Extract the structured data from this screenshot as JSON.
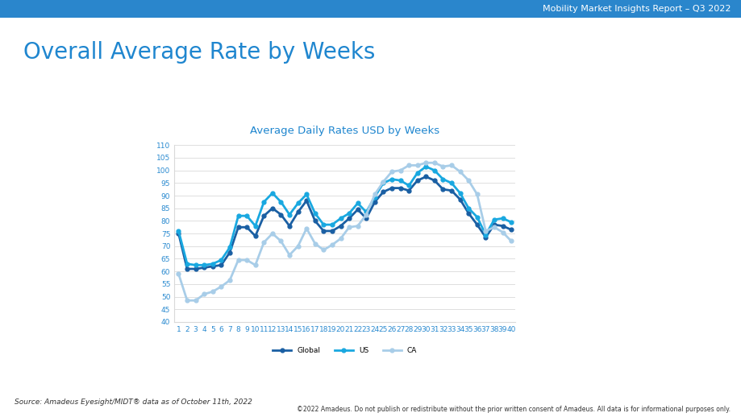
{
  "header": "Mobility Market Insights Report – Q3 2022",
  "slide_title": "Overall Average Rate by Weeks",
  "source": "Source: Amadeus Eyesight/MIDT® data as of October 11th, 2022",
  "copyright": "©2022 Amadeus. Do not publish or redistribute without the prior written consent of Amadeus. All data is for informational purposes only.",
  "chart_data": {
    "type": "line",
    "title": "Average Daily Rates USD by Weeks",
    "categories": [
      "1",
      "2",
      "3",
      "4",
      "5",
      "6",
      "7",
      "8",
      "9",
      "10",
      "11",
      "12",
      "13",
      "14",
      "15",
      "16",
      "17",
      "18",
      "19",
      "20",
      "21",
      "22",
      "23",
      "24",
      "25",
      "26",
      "27",
      "28",
      "29",
      "30",
      "31",
      "32",
      "33",
      "34",
      "35",
      "36",
      "37",
      "38",
      "39",
      "40"
    ],
    "series": [
      {
        "name": "Global",
        "color": "#1a5fa3",
        "marker": "o",
        "line_style": "solid",
        "values": [
          75,
          61,
          61,
          61.5,
          62,
          62.5,
          67.5,
          77.5,
          77.5,
          74,
          82,
          85,
          82.5,
          78,
          83.5,
          88,
          80,
          76,
          76,
          78,
          81,
          84.5,
          81,
          87.5,
          91.5,
          93,
          93,
          92,
          96,
          97.5,
          96,
          92.5,
          92,
          88.5,
          83,
          78.5,
          73.5,
          78.5,
          78,
          76.5
        ]
      },
      {
        "name": "US",
        "color": "#19a8e0",
        "marker": "o",
        "line_style": "solid",
        "values": [
          76,
          63,
          62.5,
          62.5,
          63,
          64.5,
          69.5,
          82,
          82,
          78,
          87.5,
          91,
          87.5,
          82.5,
          87,
          90.5,
          83,
          78.5,
          78.5,
          81,
          83,
          87,
          83.5,
          89.5,
          95,
          96.5,
          96,
          94,
          99,
          101.5,
          100,
          96.5,
          95,
          91,
          85,
          81.5,
          74.5,
          80.5,
          81,
          79.5
        ]
      },
      {
        "name": "CA",
        "color": "#a8cde8",
        "marker": "o",
        "line_style": "solid",
        "values": [
          59,
          48.5,
          48.5,
          51,
          52,
          54,
          56.5,
          64.5,
          64.5,
          62.5,
          71.5,
          75,
          72,
          66.5,
          70,
          77,
          71,
          68.5,
          70.5,
          73,
          77.5,
          78,
          82.5,
          90.5,
          95.5,
          99.5,
          100,
          102,
          102,
          103,
          103,
          101.5,
          102,
          99.5,
          96,
          90.5,
          76,
          77.5,
          75.5,
          72
        ]
      }
    ],
    "ylim": [
      40,
      110
    ],
    "yticks": [
      40,
      45,
      50,
      55,
      60,
      65,
      70,
      75,
      80,
      85,
      90,
      95,
      100,
      105,
      110
    ],
    "grid": true,
    "legend": "lower center"
  }
}
